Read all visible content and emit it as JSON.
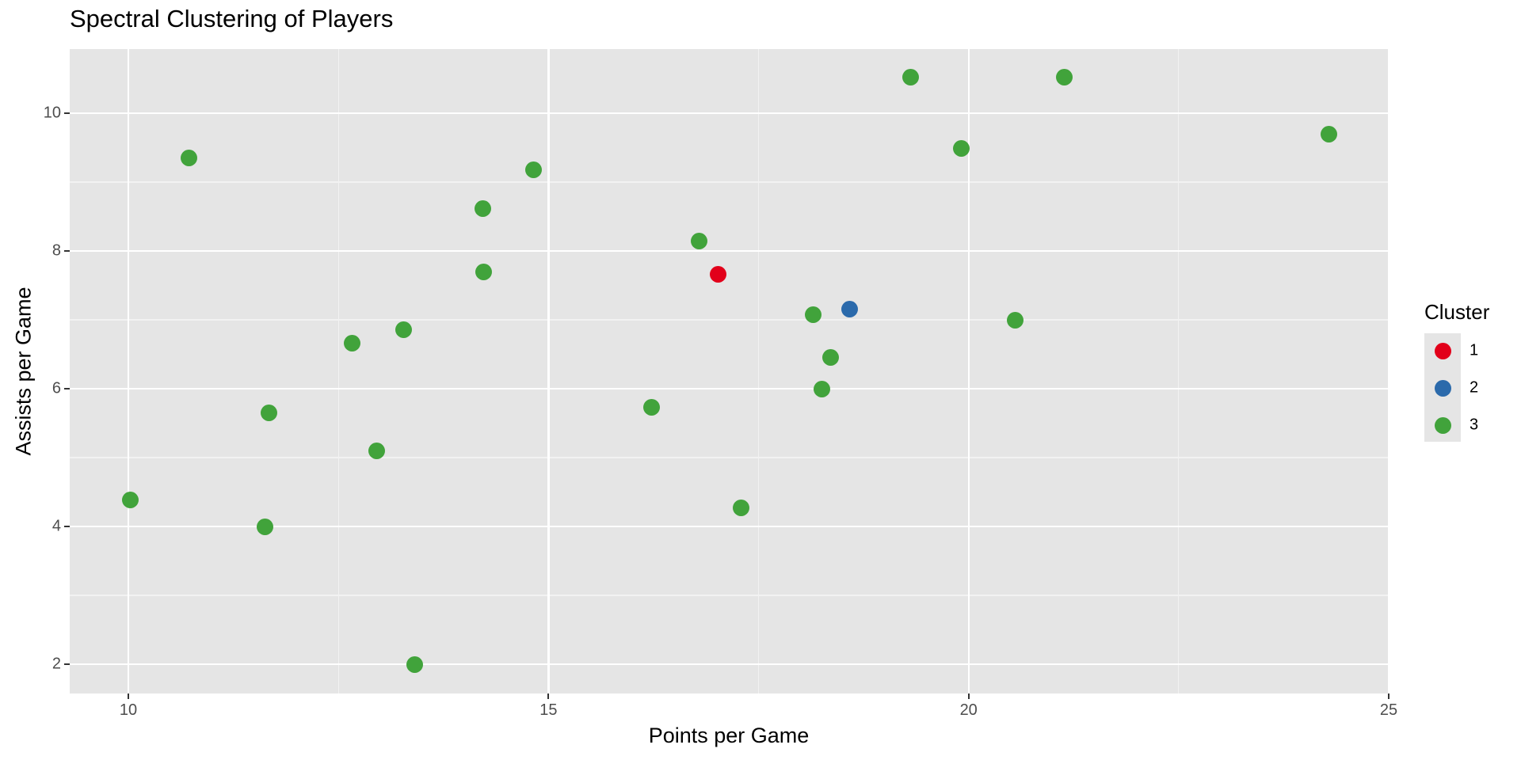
{
  "title": "Spectral Clustering of Players",
  "axes": {
    "x_label": "Points per Game",
    "y_label": "Assists per Game",
    "x_ticks": [
      "10",
      "15",
      "20",
      "25"
    ],
    "y_ticks": [
      "2",
      "4",
      "6",
      "8",
      "10"
    ]
  },
  "legend": {
    "title": "Cluster",
    "items": [
      {
        "label": "1",
        "color": "#E2001A"
      },
      {
        "label": "2",
        "color": "#2B6AAB"
      },
      {
        "label": "3",
        "color": "#41A33B"
      }
    ]
  },
  "chart_data": {
    "type": "scatter",
    "title": "Spectral Clustering of Players",
    "xlabel": "Points per Game",
    "ylabel": "Assists per Game",
    "xlim": [
      9.3,
      25.0
    ],
    "ylim": [
      1.57,
      10.93
    ],
    "x_ticks": [
      10,
      15,
      20,
      25
    ],
    "y_ticks": [
      2,
      4,
      6,
      8,
      10
    ],
    "grid": true,
    "legend_position": "right",
    "legend_title": "Cluster",
    "series": [
      {
        "name": "1",
        "color": "#E2001A",
        "points": [
          [
            17.02,
            7.66
          ]
        ]
      },
      {
        "name": "2",
        "color": "#2B6AAB",
        "points": [
          [
            18.58,
            7.15
          ]
        ]
      },
      {
        "name": "3",
        "color": "#41A33B",
        "points": [
          [
            10.02,
            4.39
          ],
          [
            10.72,
            9.35
          ],
          [
            11.67,
            5.65
          ],
          [
            11.63,
            4.0
          ],
          [
            12.66,
            6.66
          ],
          [
            12.96,
            5.1
          ],
          [
            13.28,
            6.86
          ],
          [
            13.41,
            2.0
          ],
          [
            14.22,
            8.62
          ],
          [
            14.23,
            7.69
          ],
          [
            14.82,
            9.18
          ],
          [
            16.23,
            5.73
          ],
          [
            16.79,
            8.14
          ],
          [
            17.29,
            4.27
          ],
          [
            18.15,
            7.08
          ],
          [
            18.25,
            6.0
          ],
          [
            18.36,
            6.45
          ],
          [
            19.31,
            10.52
          ],
          [
            19.91,
            9.49
          ],
          [
            20.55,
            7.0
          ],
          [
            21.14,
            10.52
          ],
          [
            24.29,
            9.69
          ]
        ]
      }
    ]
  }
}
